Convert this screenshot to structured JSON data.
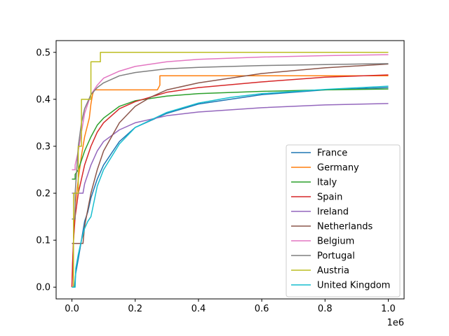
{
  "chart_data": {
    "type": "line",
    "title": "",
    "xlabel": "",
    "ylabel": "",
    "x_offset_text": "1e6",
    "xlim": [
      -50000,
      1050000
    ],
    "ylim": [
      -0.025,
      0.525
    ],
    "x_ticks": [
      0,
      200000,
      400000,
      600000,
      800000,
      1000000
    ],
    "x_tick_labels": [
      "0.0",
      "0.2",
      "0.4",
      "0.6",
      "0.8",
      "1.0"
    ],
    "y_ticks": [
      0.0,
      0.1,
      0.2,
      0.3,
      0.4,
      0.5
    ],
    "y_tick_labels": [
      "0.0",
      "0.1",
      "0.2",
      "0.3",
      "0.4",
      "0.5"
    ],
    "grid": false,
    "legend_position": "lower-right",
    "series": [
      {
        "name": "France",
        "color": "#1f77b4",
        "x": [
          0,
          8000,
          12000,
          20000,
          30000,
          40000,
          50000,
          60000,
          80000,
          100000,
          150000,
          200000,
          300000,
          400000,
          500000,
          600000,
          800000,
          1000000
        ],
        "y": [
          0.0,
          0.0,
          0.03,
          0.06,
          0.1,
          0.14,
          0.16,
          0.19,
          0.23,
          0.26,
          0.31,
          0.34,
          0.37,
          0.39,
          0.4,
          0.41,
          0.42,
          0.425
        ]
      },
      {
        "name": "Germany",
        "color": "#ff7f0e",
        "x": [
          0,
          5000,
          10000,
          20000,
          30000,
          40000,
          55000,
          60000,
          65000,
          70000,
          80000,
          120000,
          200000,
          270000,
          278000,
          278000,
          400000,
          600000,
          800000,
          1000000
        ],
        "y": [
          0.0,
          0.1,
          0.17,
          0.23,
          0.28,
          0.32,
          0.36,
          0.39,
          0.41,
          0.42,
          0.42,
          0.42,
          0.42,
          0.42,
          0.43,
          0.45,
          0.45,
          0.45,
          0.45,
          0.45
        ]
      },
      {
        "name": "Italy",
        "color": "#2ca02c",
        "x": [
          0,
          10000,
          10000,
          20000,
          30000,
          40000,
          60000,
          80000,
          100000,
          150000,
          200000,
          300000,
          400000,
          600000,
          800000,
          1000000
        ],
        "y": [
          0.23,
          0.23,
          0.24,
          0.25,
          0.27,
          0.29,
          0.32,
          0.345,
          0.36,
          0.385,
          0.397,
          0.407,
          0.412,
          0.417,
          0.42,
          0.422
        ]
      },
      {
        "name": "Spain",
        "color": "#d62728",
        "x": [
          0,
          2000,
          5000,
          10000,
          20000,
          30000,
          40000,
          60000,
          80000,
          100000,
          150000,
          200000,
          300000,
          400000,
          600000,
          800000,
          1000000
        ],
        "y": [
          0.0,
          0.05,
          0.1,
          0.15,
          0.2,
          0.23,
          0.26,
          0.3,
          0.33,
          0.35,
          0.38,
          0.395,
          0.415,
          0.425,
          0.437,
          0.447,
          0.452
        ]
      },
      {
        "name": "Ireland",
        "color": "#9467bd",
        "x": [
          0,
          20000,
          30000,
          35000,
          40000,
          50000,
          60000,
          80000,
          100000,
          150000,
          200000,
          300000,
          400000,
          600000,
          800000,
          1000000
        ],
        "y": [
          0.2,
          0.2,
          0.2,
          0.2,
          0.22,
          0.24,
          0.26,
          0.29,
          0.31,
          0.335,
          0.35,
          0.365,
          0.373,
          0.382,
          0.388,
          0.391
        ]
      },
      {
        "name": "Netherlands",
        "color": "#8c564b",
        "x": [
          0,
          10000,
          20000,
          30000,
          35000,
          40000,
          60000,
          80000,
          100000,
          150000,
          200000,
          250000,
          300000,
          400000,
          600000,
          800000,
          1000000
        ],
        "y": [
          0.093,
          0.093,
          0.093,
          0.093,
          0.093,
          0.13,
          0.2,
          0.25,
          0.29,
          0.35,
          0.385,
          0.405,
          0.42,
          0.435,
          0.455,
          0.467,
          0.475
        ]
      },
      {
        "name": "Belgium",
        "color": "#e377c2",
        "x": [
          0,
          10000,
          10000,
          20000,
          30000,
          40000,
          60000,
          80000,
          100000,
          150000,
          200000,
          300000,
          400000,
          600000,
          800000,
          1000000
        ],
        "y": [
          0.25,
          0.25,
          0.26,
          0.29,
          0.33,
          0.37,
          0.41,
          0.43,
          0.445,
          0.46,
          0.47,
          0.48,
          0.485,
          0.49,
          0.493,
          0.495
        ]
      },
      {
        "name": "Portugal",
        "color": "#7f7f7f",
        "x": [
          0,
          10000,
          10000,
          20000,
          30000,
          40000,
          60000,
          80000,
          100000,
          150000,
          200000,
          300000,
          400000,
          600000,
          800000,
          1000000
        ],
        "y": [
          0.145,
          0.145,
          0.2,
          0.3,
          0.35,
          0.38,
          0.41,
          0.425,
          0.435,
          0.45,
          0.457,
          0.465,
          0.468,
          0.472,
          0.474,
          0.476
        ]
      },
      {
        "name": "Austria",
        "color": "#bcbd22",
        "x": [
          0,
          5000,
          5000,
          20000,
          20000,
          30000,
          30000,
          60000,
          60000,
          90000,
          90000,
          200000,
          400000,
          600000,
          800000,
          1000000
        ],
        "y": [
          0.0,
          0.0,
          0.2,
          0.2,
          0.3,
          0.3,
          0.4,
          0.4,
          0.48,
          0.48,
          0.5,
          0.5,
          0.5,
          0.5,
          0.5,
          0.5
        ]
      },
      {
        "name": "United Kingdom",
        "color": "#17becf",
        "x": [
          0,
          10000,
          12000,
          20000,
          30000,
          40000,
          50000,
          60000,
          80000,
          100000,
          150000,
          200000,
          300000,
          400000,
          500000,
          600000,
          800000,
          1000000
        ],
        "y": [
          0.0,
          0.0,
          0.04,
          0.07,
          0.1,
          0.125,
          0.14,
          0.15,
          0.215,
          0.25,
          0.305,
          0.34,
          0.372,
          0.392,
          0.404,
          0.412,
          0.421,
          0.428
        ]
      }
    ]
  }
}
